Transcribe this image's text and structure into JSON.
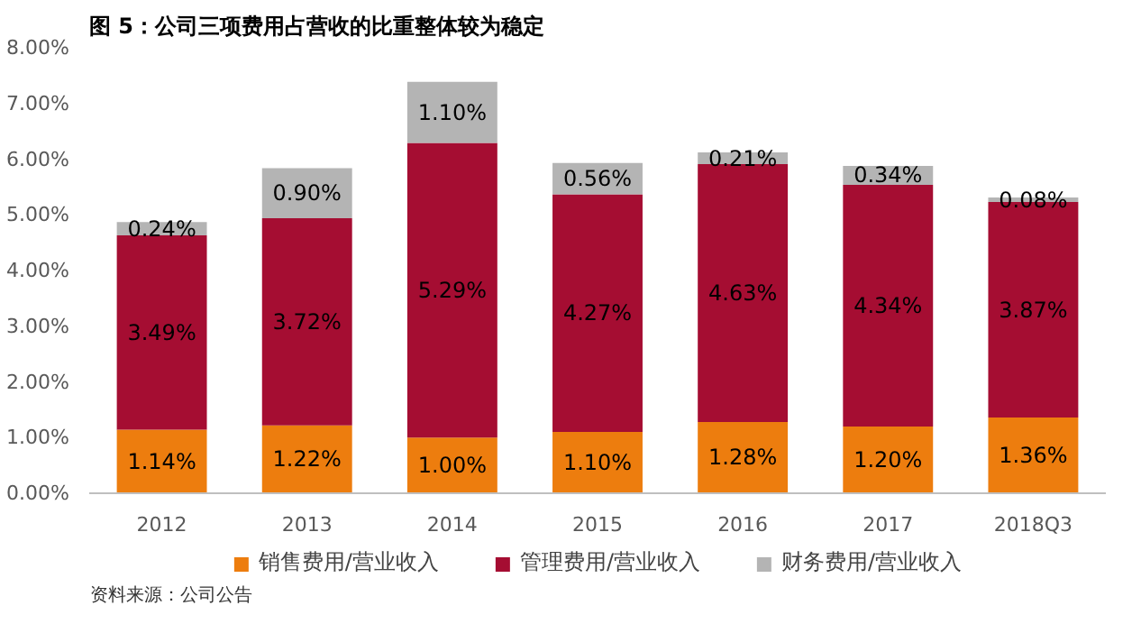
{
  "chart_data": {
    "type": "bar",
    "stacked": true,
    "title": "图 5：公司三项费用占营收的比重整体较为稳定",
    "categories": [
      "2012",
      "2013",
      "2014",
      "2015",
      "2016",
      "2017",
      "2018Q3"
    ],
    "series": [
      {
        "name": "销售费用/营业收入",
        "color": "#ed7d0e",
        "values": [
          1.14,
          1.22,
          1.0,
          1.1,
          1.28,
          1.2,
          1.36
        ],
        "value_labels": [
          "1.14%",
          "1.22%",
          "1.00%",
          "1.10%",
          "1.28%",
          "1.20%",
          "1.36%"
        ]
      },
      {
        "name": "管理费用/营业收入",
        "color": "#a50d32",
        "values": [
          3.49,
          3.72,
          5.29,
          4.27,
          4.63,
          4.34,
          3.87
        ],
        "value_labels": [
          "3.49%",
          "3.72%",
          "5.29%",
          "4.27%",
          "4.63%",
          "4.34%",
          "3.87%"
        ]
      },
      {
        "name": "财务费用/营业收入",
        "color": "#b4b4b4",
        "values": [
          0.24,
          0.9,
          1.1,
          0.56,
          0.21,
          0.34,
          0.08
        ],
        "value_labels": [
          "0.24%",
          "0.90%",
          "1.10%",
          "0.56%",
          "0.21%",
          "0.34%",
          "0.08%"
        ]
      }
    ],
    "ylim": [
      0,
      8
    ],
    "yticks": [
      {
        "value": 0,
        "label": "0.00%"
      },
      {
        "value": 1,
        "label": "1.00%"
      },
      {
        "value": 2,
        "label": "2.00%"
      },
      {
        "value": 3,
        "label": "3.00%"
      },
      {
        "value": 4,
        "label": "4.00%"
      },
      {
        "value": 5,
        "label": "5.00%"
      },
      {
        "value": 6,
        "label": "6.00%"
      },
      {
        "value": 7,
        "label": "7.00%"
      },
      {
        "value": 8,
        "label": "8.00%"
      }
    ],
    "grid": false,
    "legend": "bottom",
    "annotations": [
      "资料来源：公司公告"
    ]
  }
}
